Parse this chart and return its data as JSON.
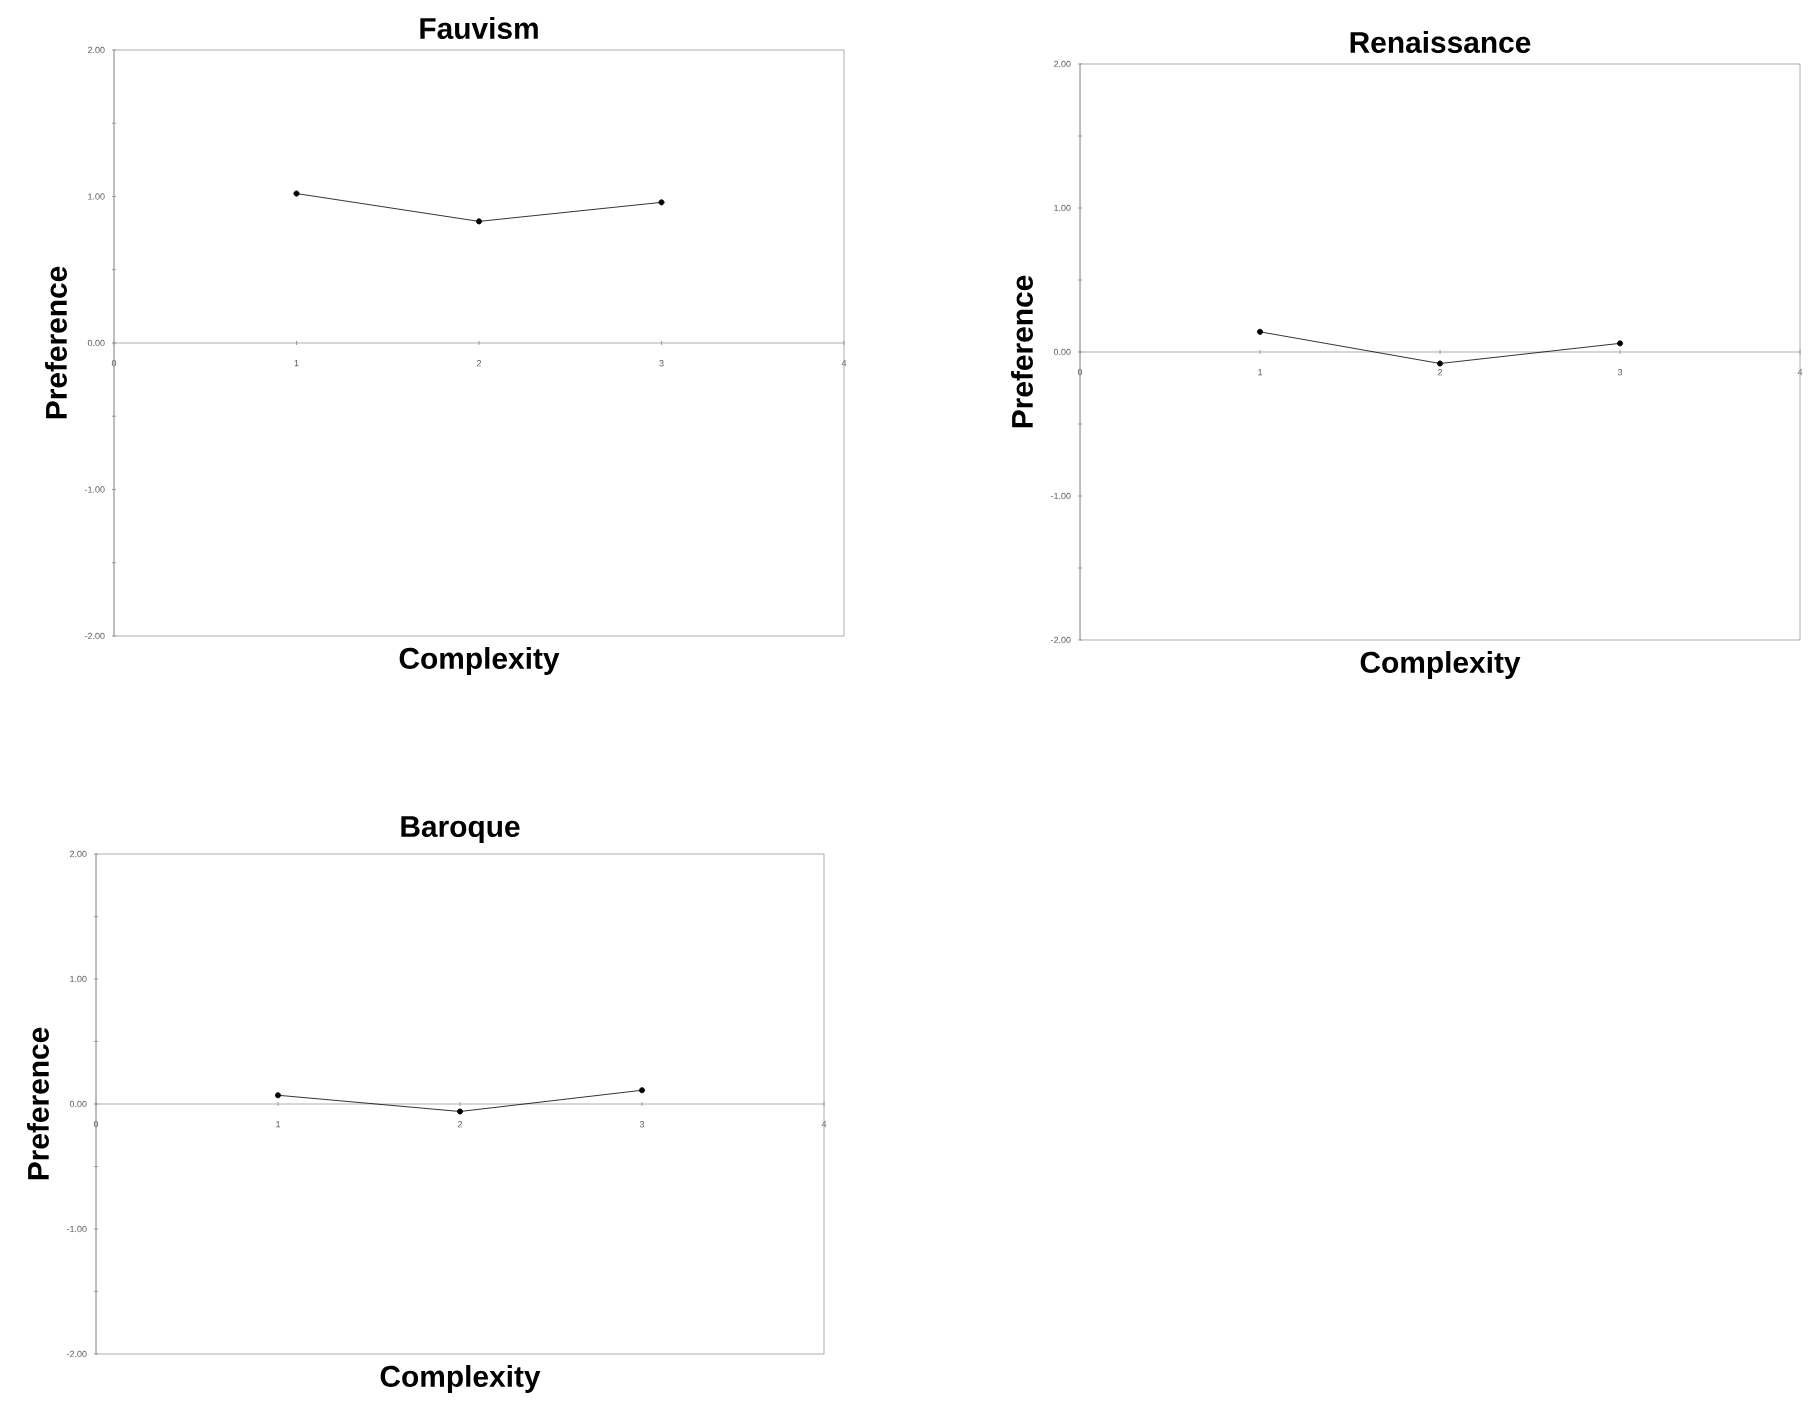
{
  "chart_data": [
    {
      "type": "line",
      "title": "Fauvism",
      "xlabel": "Complexity",
      "ylabel": "Preference",
      "x": [
        1,
        2,
        3
      ],
      "xlim": [
        0,
        4
      ],
      "xticks": [
        0,
        1,
        2,
        3,
        4
      ],
      "ylim": [
        -2,
        2
      ],
      "yticks": [
        {
          "value": -2,
          "label": "-2.00"
        },
        {
          "value": -1.5,
          "label": null
        },
        {
          "value": -1,
          "label": "-1.00"
        },
        {
          "value": -0.5,
          "label": null
        },
        {
          "value": 0,
          "label": "0.00"
        },
        {
          "value": 0.5,
          "label": null
        },
        {
          "value": 1,
          "label": "1.00"
        },
        {
          "value": 1.5,
          "label": null
        },
        {
          "value": 2,
          "label": "2.00"
        }
      ],
      "marker": "circle",
      "line_style": "solid",
      "series": [
        {
          "color": "#000000",
          "values": [
            1.02,
            0.83,
            0.96
          ]
        }
      ]
    },
    {
      "type": "line",
      "title": "Renaissance",
      "xlabel": "Complexity",
      "ylabel": "Preference",
      "x": [
        1,
        2,
        3
      ],
      "xlim": [
        0,
        4
      ],
      "xticks": [
        0,
        1,
        2,
        3,
        4
      ],
      "ylim": [
        -2,
        2
      ],
      "yticks": [
        {
          "value": -2,
          "label": "-2.00"
        },
        {
          "value": -1.5,
          "label": null
        },
        {
          "value": -1,
          "label": "-1.00"
        },
        {
          "value": -0.5,
          "label": null
        },
        {
          "value": 0,
          "label": "0.00"
        },
        {
          "value": 0.5,
          "label": null
        },
        {
          "value": 1,
          "label": "1.00"
        },
        {
          "value": 1.5,
          "label": null
        },
        {
          "value": 2,
          "label": "2.00"
        }
      ],
      "marker": "circle",
      "line_style": "solid",
      "series": [
        {
          "color": "#000000",
          "values": [
            0.14,
            -0.08,
            0.06
          ]
        }
      ]
    },
    {
      "type": "line",
      "title": "Baroque",
      "xlabel": "Complexity",
      "ylabel": "Preference",
      "x": [
        1,
        2,
        3
      ],
      "xlim": [
        0,
        4
      ],
      "xticks": [
        0,
        1,
        2,
        3,
        4
      ],
      "ylim": [
        -2,
        2
      ],
      "yticks": [
        {
          "value": -2,
          "label": "-2.00"
        },
        {
          "value": -1.5,
          "label": null
        },
        {
          "value": -1,
          "label": "-1.00"
        },
        {
          "value": -0.5,
          "label": null
        },
        {
          "value": 0,
          "label": "0.00"
        },
        {
          "value": 0.5,
          "label": null
        },
        {
          "value": 1,
          "label": "1.00"
        },
        {
          "value": 1.5,
          "label": null
        },
        {
          "value": 2,
          "label": "2.00"
        }
      ],
      "marker": "circle",
      "line_style": "solid",
      "series": [
        {
          "color": "#000000",
          "values": [
            0.07,
            -0.06,
            0.11
          ]
        }
      ]
    }
  ]
}
